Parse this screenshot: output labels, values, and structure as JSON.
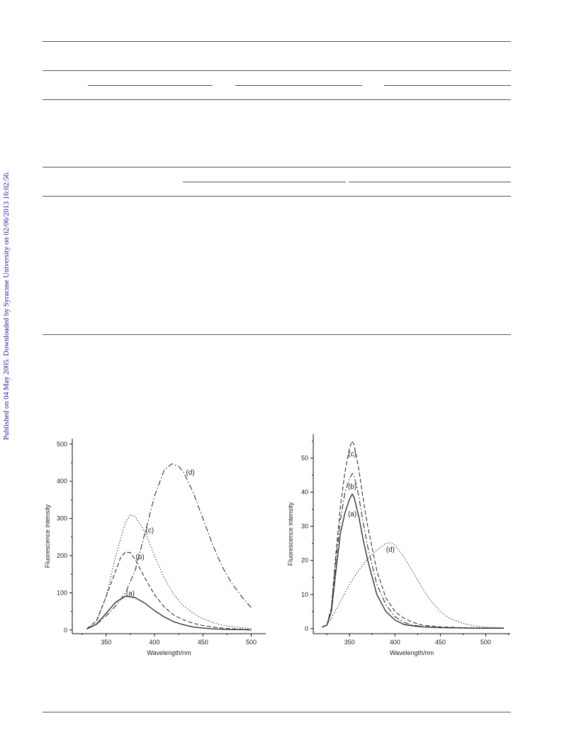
{
  "side_note": "Published on 04 May 2005. Downloaded by Syracuse University on 02/06/2013 16:02:56.",
  "chart_data": [
    {
      "type": "line",
      "title": "",
      "xlabel": "Wavelength/nm",
      "ylabel": "Fluorescence intensity",
      "xlim": [
        315,
        515
      ],
      "ylim": [
        -10,
        515
      ],
      "xticks": [
        350,
        400,
        450,
        500
      ],
      "yticks": [
        0,
        100,
        200,
        300,
        400,
        500
      ],
      "series": [
        {
          "name": "(a)",
          "style": "solid",
          "label_at": [
            375,
            92
          ],
          "x": [
            330,
            340,
            350,
            360,
            370,
            380,
            390,
            400,
            410,
            420,
            430,
            440,
            450,
            460,
            470,
            480,
            490,
            500
          ],
          "y": [
            3,
            15,
            45,
            75,
            91,
            87,
            72,
            52,
            35,
            22,
            14,
            8,
            5,
            3,
            2,
            1,
            1,
            0
          ]
        },
        {
          "name": "(b)",
          "style": "dash",
          "label_at": [
            385,
            190
          ],
          "x": [
            330,
            340,
            350,
            360,
            365,
            370,
            375,
            380,
            390,
            400,
            410,
            420,
            430,
            440,
            450,
            460,
            470,
            480,
            490,
            500
          ],
          "y": [
            3,
            25,
            90,
            160,
            195,
            210,
            208,
            190,
            140,
            95,
            62,
            40,
            27,
            18,
            12,
            8,
            5,
            3,
            2,
            1
          ]
        },
        {
          "name": "(c)",
          "style": "dot",
          "label_at": [
            395,
            262
          ],
          "x": [
            330,
            340,
            350,
            360,
            370,
            375,
            380,
            390,
            400,
            410,
            420,
            430,
            440,
            450,
            460,
            470,
            480,
            490,
            500
          ],
          "y": [
            2,
            20,
            90,
            200,
            290,
            310,
            305,
            265,
            200,
            140,
            95,
            65,
            45,
            30,
            20,
            13,
            9,
            6,
            4
          ]
        },
        {
          "name": "(d)",
          "style": "dashdot",
          "label_at": [
            437,
            418
          ],
          "x": [
            330,
            340,
            350,
            360,
            370,
            380,
            390,
            400,
            410,
            418,
            425,
            430,
            440,
            450,
            460,
            470,
            480,
            490,
            500
          ],
          "y": [
            3,
            15,
            38,
            65,
            100,
            160,
            260,
            360,
            430,
            447,
            440,
            425,
            370,
            300,
            230,
            170,
            125,
            90,
            60
          ]
        }
      ]
    },
    {
      "type": "line",
      "title": "",
      "xlabel": "Wavelength/nm",
      "ylabel": "Fluorescence intensity",
      "xlim": [
        310,
        527
      ],
      "ylim": [
        -1.5,
        57
      ],
      "xticks": [
        350,
        400,
        450,
        500
      ],
      "yticks": [
        0,
        10,
        20,
        30,
        40,
        50
      ],
      "series": [
        {
          "name": "(a)",
          "style": "solid",
          "label_at": [
            353,
            33
          ],
          "x": [
            320,
            325,
            330,
            335,
            340,
            345,
            350,
            353,
            355,
            360,
            365,
            370,
            380,
            390,
            400,
            410,
            420,
            430,
            450,
            470,
            490,
            520
          ],
          "y": [
            0.5,
            1,
            5,
            17,
            28,
            34,
            38,
            39.5,
            38.5,
            33,
            26,
            20,
            10,
            5,
            2.5,
            1.2,
            0.8,
            0.5,
            0.3,
            0.2,
            0.1,
            0.1
          ]
        },
        {
          "name": "(b)",
          "style": "dashdot",
          "label_at": [
            353,
            41
          ],
          "x": [
            320,
            325,
            330,
            335,
            340,
            345,
            350,
            353,
            355,
            360,
            365,
            370,
            380,
            390,
            400,
            410,
            420,
            430,
            450,
            470,
            490,
            520
          ],
          "y": [
            0.5,
            1,
            6,
            20,
            32,
            40,
            44,
            45.5,
            45,
            39,
            31,
            24,
            13,
            7,
            3.5,
            1.8,
            1,
            0.6,
            0.3,
            0.2,
            0.1,
            0.1
          ]
        },
        {
          "name": "(c)",
          "style": "dash",
          "label_at": [
            353,
            50.5
          ],
          "x": [
            320,
            325,
            330,
            335,
            340,
            345,
            350,
            353,
            355,
            360,
            365,
            370,
            380,
            390,
            400,
            410,
            420,
            430,
            450,
            470,
            490,
            520
          ],
          "y": [
            0.5,
            1,
            6,
            22,
            36,
            46,
            53,
            55,
            54,
            47,
            38,
            30,
            17,
            9,
            5,
            3,
            1.8,
            1,
            0.5,
            0.3,
            0.2,
            0.1
          ]
        },
        {
          "name": "(d)",
          "style": "dot",
          "label_at": [
            395,
            22.5
          ],
          "x": [
            320,
            325,
            330,
            340,
            350,
            360,
            370,
            380,
            390,
            395,
            400,
            410,
            420,
            430,
            440,
            450,
            460,
            470,
            480,
            490,
            500,
            520
          ],
          "y": [
            0.3,
            1,
            3,
            8,
            13,
            17,
            20.5,
            23,
            25,
            25.2,
            24.5,
            21,
            16.5,
            12,
            8,
            5,
            3,
            2,
            1.2,
            0.7,
            0.4,
            0.2
          ]
        }
      ]
    }
  ]
}
